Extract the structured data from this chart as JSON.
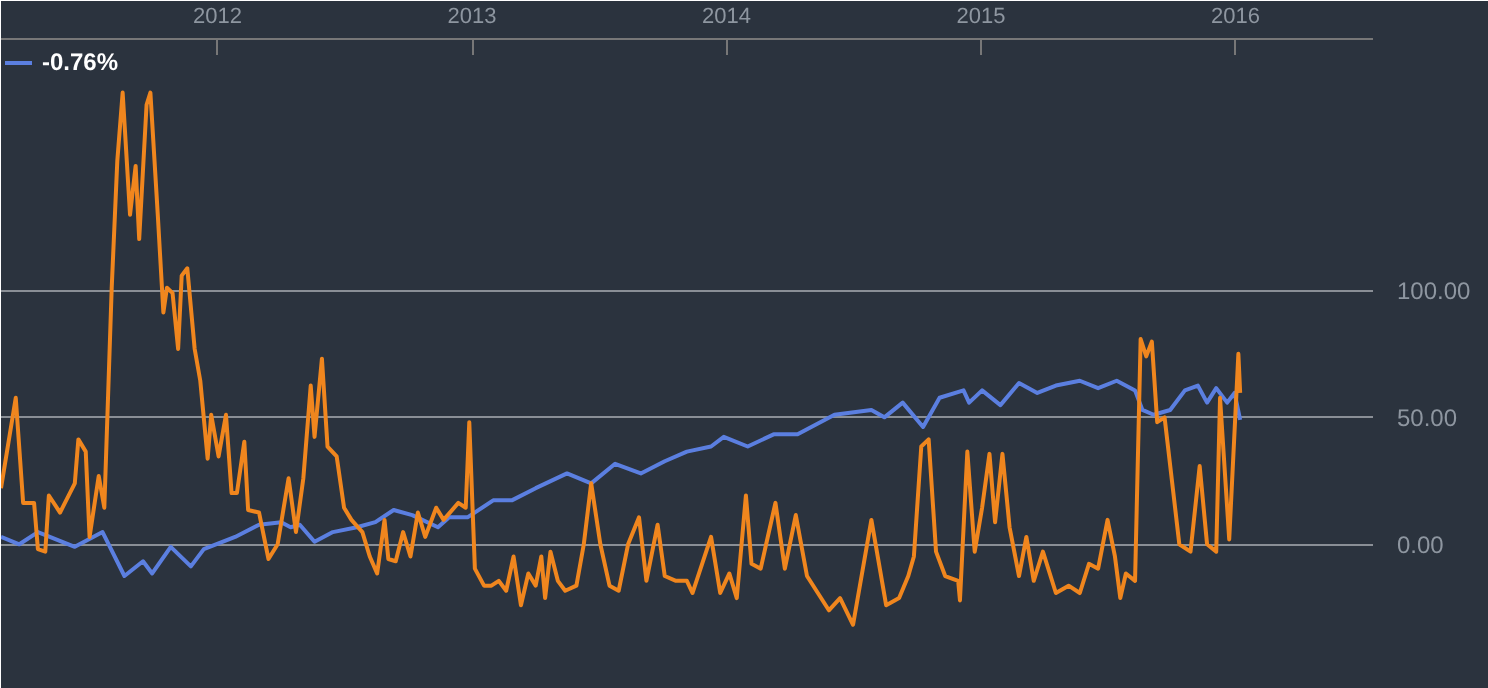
{
  "chart_data": {
    "type": "line",
    "xlim": [
      2011.149,
      2016.54
    ],
    "xticks": [
      2012,
      2013,
      2014,
      2015,
      2016
    ],
    "ylim": [
      -57,
      199
    ],
    "yticks": [
      {
        "value": 0,
        "label": "0.00"
      },
      {
        "value": 50,
        "label": "50.00"
      },
      {
        "value": 100,
        "label": "100.00"
      }
    ],
    "grid": "y",
    "legend": "top left",
    "marker": "none",
    "line_style": "solid",
    "series": [
      {
        "name": "-0.76%",
        "color": "#5b7fe0",
        "x": [
          2011.149,
          2011.221,
          2011.294,
          2011.439,
          2011.548,
          2011.634,
          2011.707,
          2011.743,
          2011.816,
          2011.895,
          2011.946,
          2012.069,
          2012.163,
          2012.25,
          2012.287,
          2012.323,
          2012.381,
          2012.453,
          2012.547,
          2012.62,
          2012.692,
          2012.765,
          2012.866,
          2012.91,
          2012.982,
          2013.083,
          2013.156,
          2013.25,
          2013.373,
          2013.468,
          2013.562,
          2013.663,
          2013.757,
          2013.844,
          2013.939,
          2013.989,
          2014.083,
          2014.185,
          2014.279,
          2014.424,
          2014.569,
          2014.62,
          2014.692,
          2014.772,
          2014.837,
          2014.931,
          2014.953,
          2015.004,
          2015.076,
          2015.149,
          2015.221,
          2015.294,
          2015.388,
          2015.46,
          2015.533,
          2015.605,
          2015.634,
          2015.678,
          2015.743,
          2015.801,
          2015.852,
          2015.888,
          2015.924,
          2015.967,
          2015.996,
          2016.018
        ],
        "values": [
          2.9,
          0,
          4.8,
          -1.0,
          4.8,
          -12.5,
          -6.7,
          -11.5,
          -1.0,
          -8.7,
          -1.9,
          2.9,
          7.7,
          8.7,
          6.7,
          7.7,
          1.0,
          4.8,
          6.7,
          8.7,
          13.5,
          11.5,
          6.7,
          10.6,
          10.6,
          17.3,
          17.3,
          22.1,
          27.9,
          24.0,
          31.7,
          27.9,
          32.7,
          36.5,
          38.5,
          42.3,
          38.5,
          43.3,
          43.3,
          51.0,
          52.9,
          50.0,
          55.8,
          46.2,
          57.7,
          60.6,
          55.8,
          60.6,
          54.8,
          63.5,
          59.6,
          62.5,
          64.4,
          61.5,
          64.4,
          60.6,
          52.9,
          51.0,
          52.9,
          60.6,
          62.5,
          55.8,
          61.5,
          55.8,
          59.6,
          49.0
        ]
      },
      {
        "color": "#f0861e",
        "x": [
          2011.149,
          2011.207,
          2011.236,
          2011.279,
          2011.294,
          2011.323,
          2011.337,
          2011.381,
          2011.439,
          2011.453,
          2011.482,
          2011.497,
          2011.533,
          2011.555,
          2011.584,
          2011.606,
          2011.627,
          2011.656,
          2011.678,
          2011.692,
          2011.721,
          2011.736,
          2011.765,
          2011.787,
          2011.801,
          2011.823,
          2011.845,
          2011.859,
          2011.881,
          2011.91,
          2011.932,
          2011.961,
          2011.975,
          2012.004,
          2012.033,
          2012.055,
          2012.076,
          2012.105,
          2012.12,
          2012.163,
          2012.2,
          2012.236,
          2012.279,
          2012.308,
          2012.337,
          2012.366,
          2012.381,
          2012.41,
          2012.432,
          2012.468,
          2012.497,
          2012.526,
          2012.569,
          2012.598,
          2012.627,
          2012.656,
          2012.671,
          2012.7,
          2012.729,
          2012.758,
          2012.787,
          2012.816,
          2012.859,
          2012.888,
          2012.946,
          2012.975,
          2012.989,
          2013.011,
          2013.047,
          2013.076,
          2013.105,
          2013.134,
          2013.163,
          2013.192,
          2013.221,
          2013.25,
          2013.272,
          2013.287,
          2013.308,
          2013.337,
          2013.366,
          2013.41,
          2013.439,
          2013.468,
          2013.504,
          2013.54,
          2013.576,
          2013.613,
          2013.656,
          2013.685,
          2013.729,
          2013.757,
          2013.801,
          2013.844,
          2013.866,
          2013.939,
          2013.975,
          2014.011,
          2014.04,
          2014.076,
          2014.098,
          2014.134,
          2014.192,
          2014.229,
          2014.272,
          2014.316,
          2014.402,
          2014.446,
          2014.497,
          2014.569,
          2014.627,
          2014.678,
          2014.714,
          2014.736,
          2014.765,
          2014.794,
          2014.823,
          2014.859,
          2014.91,
          2014.917,
          2014.946,
          2014.975,
          2015.004,
          2015.033,
          2015.055,
          2015.084,
          2015.112,
          2015.149,
          2015.178,
          2015.207,
          2015.243,
          2015.294,
          2015.344,
          2015.388,
          2015.424,
          2015.46,
          2015.497,
          2015.526,
          2015.547,
          2015.569,
          2015.605,
          2015.627,
          2015.649,
          2015.671,
          2015.692,
          2015.721,
          2015.779,
          2015.823,
          2015.859,
          2015.888,
          2015.924,
          2015.939,
          2015.975,
          2016.011,
          2016.018
        ],
        "values": [
          22.1,
          57.7,
          16.3,
          16.3,
          -1.9,
          -2.9,
          19.2,
          12.5,
          24.0,
          41.3,
          36.5,
          2.9,
          26.9,
          14.4,
          101.0,
          151.0,
          177.9,
          129.8,
          149.0,
          120.2,
          173.1,
          177.9,
          129.8,
          91.3,
          101.0,
          99.0,
          76.9,
          105.8,
          108.7,
          76.9,
          64.4,
          33.7,
          51.0,
          34.6,
          51.0,
          20.2,
          20.2,
          40.4,
          13.5,
          12.5,
          -5.8,
          0,
          26.0,
          4.8,
          26.0,
          62.5,
          42.3,
          73.1,
          38.5,
          34.6,
          14.4,
          9.6,
          4.8,
          -4.8,
          -11.5,
          9.6,
          -5.8,
          -6.7,
          4.8,
          -4.8,
          12.5,
          2.9,
          14.4,
          9.6,
          16.3,
          14.4,
          48.1,
          -9.6,
          -16.3,
          -16.3,
          -14.4,
          -18.3,
          -4.8,
          -24.0,
          -11.5,
          -16.3,
          -4.8,
          -21.2,
          -2.9,
          -14.4,
          -18.3,
          -16.3,
          0,
          24.0,
          0,
          -16.3,
          -18.3,
          0,
          10.6,
          -14.4,
          7.7,
          -12.5,
          -14.4,
          -14.4,
          -19.2,
          2.9,
          -19.2,
          -11.5,
          -21.2,
          19.2,
          -7.7,
          -9.6,
          16.3,
          -9.6,
          11.5,
          -12.5,
          -26.0,
          -21.2,
          -31.7,
          9.6,
          -24.0,
          -21.2,
          -12.5,
          -4.8,
          38.5,
          41.3,
          -2.9,
          -12.5,
          -14.4,
          -22.1,
          36.5,
          -2.9,
          14.4,
          35.6,
          8.7,
          35.6,
          6.7,
          -12.5,
          2.9,
          -14.4,
          -2.9,
          -19.2,
          -16.3,
          -19.2,
          -7.7,
          -9.6,
          9.6,
          -4.8,
          -21.2,
          -11.5,
          -14.4,
          80.8,
          74.0,
          79.8,
          48.1,
          50.0,
          0,
          -2.9,
          30.8,
          0,
          -2.9,
          57.7,
          1.9,
          75.0,
          59.6
        ]
      }
    ]
  }
}
